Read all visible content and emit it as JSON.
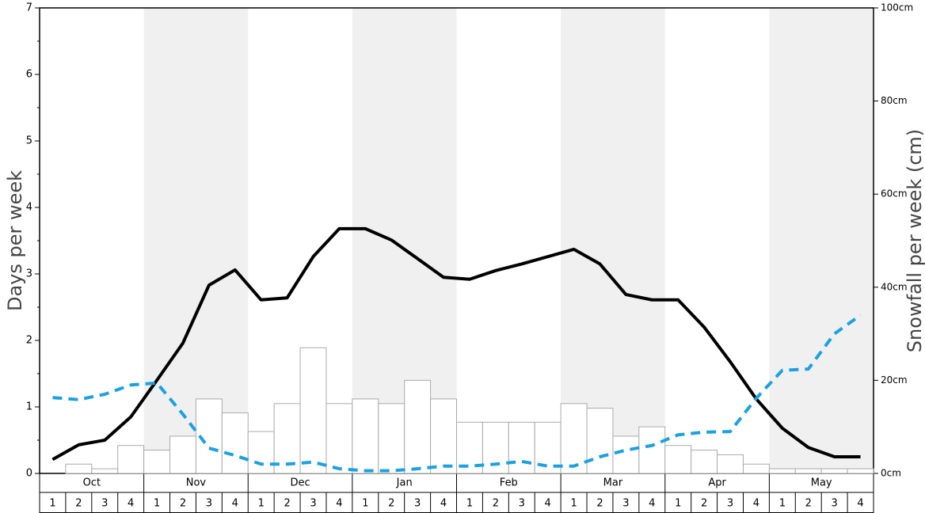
{
  "chart_data": {
    "type": "bar-line",
    "y_label": "Days per week",
    "y2_label": "Snowfall per week (cm)",
    "groups": [
      "Oct",
      "Nov",
      "Dec",
      "Jan",
      "Feb",
      "Mar",
      "Apr",
      "May"
    ],
    "categories": [
      "1",
      "2",
      "3",
      "4",
      "1",
      "2",
      "3",
      "4",
      "1",
      "2",
      "3",
      "4",
      "1",
      "2",
      "3",
      "4",
      "1",
      "2",
      "3",
      "4",
      "1",
      "2",
      "3",
      "4",
      "1",
      "2",
      "3",
      "4",
      "1",
      "2",
      "3",
      "4"
    ],
    "ylim": [
      0,
      7
    ],
    "yticks": [
      0,
      1,
      2,
      3,
      4,
      5,
      6,
      7
    ],
    "y2lim": [
      0,
      100
    ],
    "y2ticks": [
      {
        "value": 0,
        "label": "0cm"
      },
      {
        "value": 20,
        "label": "20cm"
      },
      {
        "value": 40,
        "label": "40cm"
      },
      {
        "value": 60,
        "label": "60cm"
      },
      {
        "value": 80,
        "label": "80cm"
      },
      {
        "value": 100,
        "label": "100cm"
      }
    ],
    "series": [
      {
        "kind": "bar",
        "axis": "y2",
        "color": "#ffffff",
        "edge": "#aaaaaa",
        "values": [
          0,
          2,
          1,
          6,
          5,
          8,
          16,
          13,
          9,
          15,
          27,
          15,
          16,
          15,
          20,
          16,
          11,
          11,
          11,
          11,
          15,
          14,
          8,
          10,
          6,
          5,
          4,
          2,
          1,
          1,
          1,
          1
        ]
      },
      {
        "kind": "line",
        "axis": "y",
        "color": "#000000",
        "dashed": false,
        "values": [
          0.21,
          0.43,
          0.5,
          0.85,
          1.4,
          1.96,
          2.83,
          3.06,
          2.61,
          2.64,
          3.26,
          3.68,
          3.68,
          3.51,
          3.23,
          2.95,
          2.92,
          3.05,
          3.15,
          3.26,
          3.37,
          3.15,
          2.69,
          2.61,
          2.61,
          2.2,
          1.68,
          1.12,
          0.68,
          0.39,
          0.25,
          0.25
        ]
      },
      {
        "kind": "line",
        "axis": "y",
        "color": "#1ba1e2",
        "dashed": true,
        "values": [
          1.14,
          1.11,
          1.19,
          1.33,
          1.36,
          0.89,
          0.38,
          0.27,
          0.14,
          0.14,
          0.17,
          0.07,
          0.04,
          0.04,
          0.07,
          0.11,
          0.11,
          0.14,
          0.18,
          0.11,
          0.11,
          0.25,
          0.35,
          0.42,
          0.58,
          0.62,
          0.63,
          1.13,
          1.55,
          1.57,
          2.1,
          2.38
        ]
      }
    ]
  }
}
